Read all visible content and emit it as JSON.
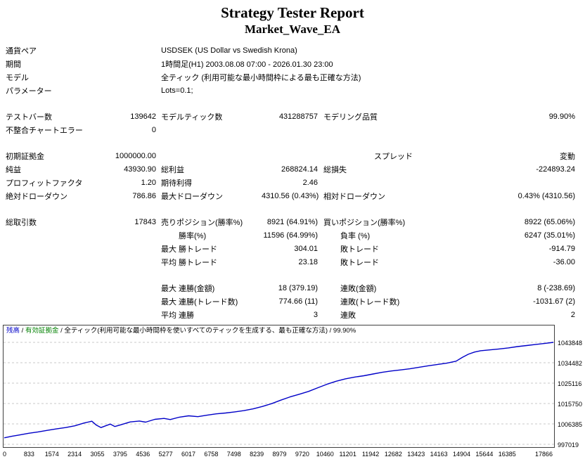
{
  "header": {
    "title": "Strategy Tester Report",
    "subtitle": "Market_Wave_EA"
  },
  "summary": {
    "rows": [
      {
        "label": "通貨ペア",
        "value": "USDSEK (US Dollar vs Swedish Krona)"
      },
      {
        "label": "期間",
        "value": "1時間足(H1) 2003.08.08 07:00 - 2026.01.30 23:00"
      },
      {
        "label": "モデル",
        "value": "全ティック (利用可能な最小時間枠による最も正確な方法)"
      },
      {
        "label": "パラメーター",
        "value": "Lots=0.1;"
      }
    ]
  },
  "stats": {
    "rows": [
      {
        "l1": "テストバー数",
        "v1": "139642",
        "l2": "モデルティック数",
        "v2": "431288757",
        "l3": "モデリング品質",
        "v3": "99.90%",
        "span": true
      },
      {
        "l1": "不整合チャートエラー",
        "v1": "0",
        "l2": "",
        "v2": "",
        "l3": "",
        "v3": "",
        "span": true
      },
      {
        "blank": true
      },
      {
        "l1": "初期証拠金",
        "v1": "1000000.00",
        "l2": "",
        "v2": "",
        "l3": "スプレッド",
        "v3": "変動",
        "span": true,
        "spread": true
      },
      {
        "l1": "純益",
        "v1": "43930.90",
        "l2": "総利益",
        "v2": "268824.14",
        "l3": "総損失",
        "v3": "-224893.24",
        "span": true
      },
      {
        "l1": "プロフィットファクタ",
        "v1": "1.20",
        "l2": "期待利得",
        "v2": "2.46",
        "l3": "",
        "v3": "",
        "span": true
      },
      {
        "l1": "絶対ドローダウン",
        "v1": "786.86",
        "l2": "最大ドローダウン",
        "v2": "4310.56 (0.43%)",
        "l3": "相対ドローダウン",
        "v3": "0.43% (4310.56)",
        "span": true
      },
      {
        "blank": true
      },
      {
        "l1": "総取引数",
        "v1": "17843",
        "l2": "売りポジション(勝率%)",
        "v2": "8921 (64.91%)",
        "l3": "買いポジション(勝率%)",
        "v3": "8922 (65.06%)",
        "span": true
      },
      {
        "l1": "",
        "v1": "",
        "p": "",
        "l2": "勝率(%)",
        "v2": "11596 (64.99%)",
        "l3": "負率 (%)",
        "v3": "6247 (35.01%)"
      },
      {
        "l1": "",
        "v1": "",
        "p": "最大",
        "l2": "勝トレード",
        "v2": "304.01",
        "l3": "敗トレード",
        "v3": "-914.79"
      },
      {
        "l1": "",
        "v1": "",
        "p": "平均",
        "l2": "勝トレード",
        "v2": "23.18",
        "l3": "敗トレード",
        "v3": "-36.00"
      },
      {
        "blank": true
      },
      {
        "l1": "",
        "v1": "",
        "p": "最大",
        "l2": "連勝(金額)",
        "v2": "18 (379.19)",
        "l3": "連敗(金額)",
        "v3": "8 (-238.69)"
      },
      {
        "l1": "",
        "v1": "",
        "p": "最大",
        "l2": "連勝(トレード数)",
        "v2": "774.66 (11)",
        "l3": "連敗(トレード数)",
        "v3": "-1031.67 (2)"
      },
      {
        "l1": "",
        "v1": "",
        "p": "平均",
        "l2": "連勝",
        "v2": "3",
        "l3": "連敗",
        "v3": "2"
      }
    ]
  },
  "chart_data": {
    "type": "line",
    "title": "残高 / 有効証拠金 / 全ティック(利用可能な最小時間枠を使いすべてのティックを生成する、最も正確な方法) / 99.90%",
    "legend_parts": [
      {
        "text": "残高",
        "color": "#0000c8"
      },
      {
        "text": " / ",
        "color": "#000000"
      },
      {
        "text": "有効証拠金",
        "color": "#008000"
      },
      {
        "text": " / 全ティック(利用可能な最小時間枠を使いすべてのティックを生成する、最も正確な方法) / 99.90%",
        "color": "#000000"
      }
    ],
    "grid": "horizontal-dashed",
    "grid_color": "#c8c8c8",
    "xlim": [
      0,
      17866
    ],
    "y_ticks": [
      997019,
      1006385,
      1015750,
      1025116,
      1034482,
      1043848
    ],
    "x_ticks": [
      "0",
      "833",
      "1574",
      "2314",
      "3055",
      "3795",
      "4536",
      "5277",
      "6017",
      "6758",
      "7498",
      "8239",
      "8979",
      "9720",
      "10460",
      "11201",
      "11942",
      "12682",
      "13423",
      "14163",
      "14904",
      "15644",
      "16385",
      "17866"
    ],
    "series": [
      {
        "name": "残高",
        "color": "#0000c8",
        "points": [
          [
            0,
            1000000
          ],
          [
            250,
            1000700
          ],
          [
            500,
            1001300
          ],
          [
            800,
            1002100
          ],
          [
            1100,
            1002700
          ],
          [
            1400,
            1003400
          ],
          [
            1700,
            1004100
          ],
          [
            2000,
            1004700
          ],
          [
            2300,
            1005500
          ],
          [
            2600,
            1006800
          ],
          [
            2850,
            1007600
          ],
          [
            3000,
            1005800
          ],
          [
            3150,
            1004700
          ],
          [
            3300,
            1005500
          ],
          [
            3450,
            1006300
          ],
          [
            3600,
            1005200
          ],
          [
            3800,
            1006000
          ],
          [
            4100,
            1007300
          ],
          [
            4400,
            1007700
          ],
          [
            4600,
            1007200
          ],
          [
            4900,
            1008500
          ],
          [
            5200,
            1008900
          ],
          [
            5400,
            1008400
          ],
          [
            5700,
            1009500
          ],
          [
            6000,
            1010100
          ],
          [
            6300,
            1009700
          ],
          [
            6600,
            1010400
          ],
          [
            6900,
            1011000
          ],
          [
            7200,
            1011400
          ],
          [
            7500,
            1011900
          ],
          [
            7800,
            1012500
          ],
          [
            8100,
            1013300
          ],
          [
            8400,
            1014400
          ],
          [
            8700,
            1015700
          ],
          [
            9000,
            1017300
          ],
          [
            9300,
            1018800
          ],
          [
            9600,
            1020000
          ],
          [
            9900,
            1021300
          ],
          [
            10200,
            1023000
          ],
          [
            10500,
            1024600
          ],
          [
            10800,
            1026000
          ],
          [
            11100,
            1027100
          ],
          [
            11400,
            1027900
          ],
          [
            11700,
            1028500
          ],
          [
            12000,
            1029300
          ],
          [
            12300,
            1030100
          ],
          [
            12600,
            1030700
          ],
          [
            12900,
            1031200
          ],
          [
            13200,
            1031700
          ],
          [
            13500,
            1032400
          ],
          [
            13800,
            1033100
          ],
          [
            14100,
            1033700
          ],
          [
            14400,
            1034300
          ],
          [
            14700,
            1035200
          ],
          [
            14900,
            1036900
          ],
          [
            15100,
            1038400
          ],
          [
            15300,
            1039400
          ],
          [
            15500,
            1040000
          ],
          [
            15800,
            1040400
          ],
          [
            16100,
            1040800
          ],
          [
            16400,
            1041300
          ],
          [
            16700,
            1041900
          ],
          [
            17000,
            1042400
          ],
          [
            17300,
            1042900
          ],
          [
            17600,
            1043400
          ],
          [
            17866,
            1043848
          ]
        ]
      }
    ]
  }
}
